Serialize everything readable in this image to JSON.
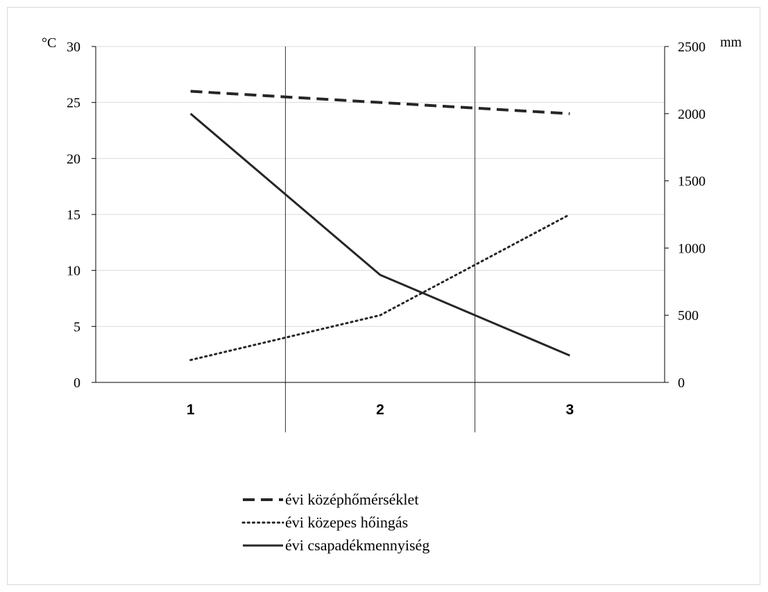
{
  "chart_data": {
    "type": "line",
    "categories": [
      "1",
      "2",
      "3"
    ],
    "y_left": {
      "unit": "°C",
      "ticks": [
        0,
        5,
        10,
        15,
        20,
        25,
        30
      ],
      "ylim": [
        0,
        30
      ]
    },
    "y_right": {
      "unit": "mm",
      "ticks": [
        0,
        500,
        1000,
        1500,
        2000,
        2500
      ],
      "ylim": [
        0,
        2500
      ]
    },
    "grid": true,
    "legend_position": "bottom",
    "series": [
      {
        "name": "évi középhőmérséklet",
        "axis": "left",
        "values": [
          26,
          25,
          24
        ],
        "style": "dashed"
      },
      {
        "name": "évi közepes hőingás",
        "axis": "left",
        "values": [
          2,
          6,
          15
        ],
        "style": "dotted"
      },
      {
        "name": "évi csapadékmennyiség",
        "axis": "right",
        "values": [
          2000,
          800,
          200
        ],
        "style": "solid"
      }
    ]
  }
}
